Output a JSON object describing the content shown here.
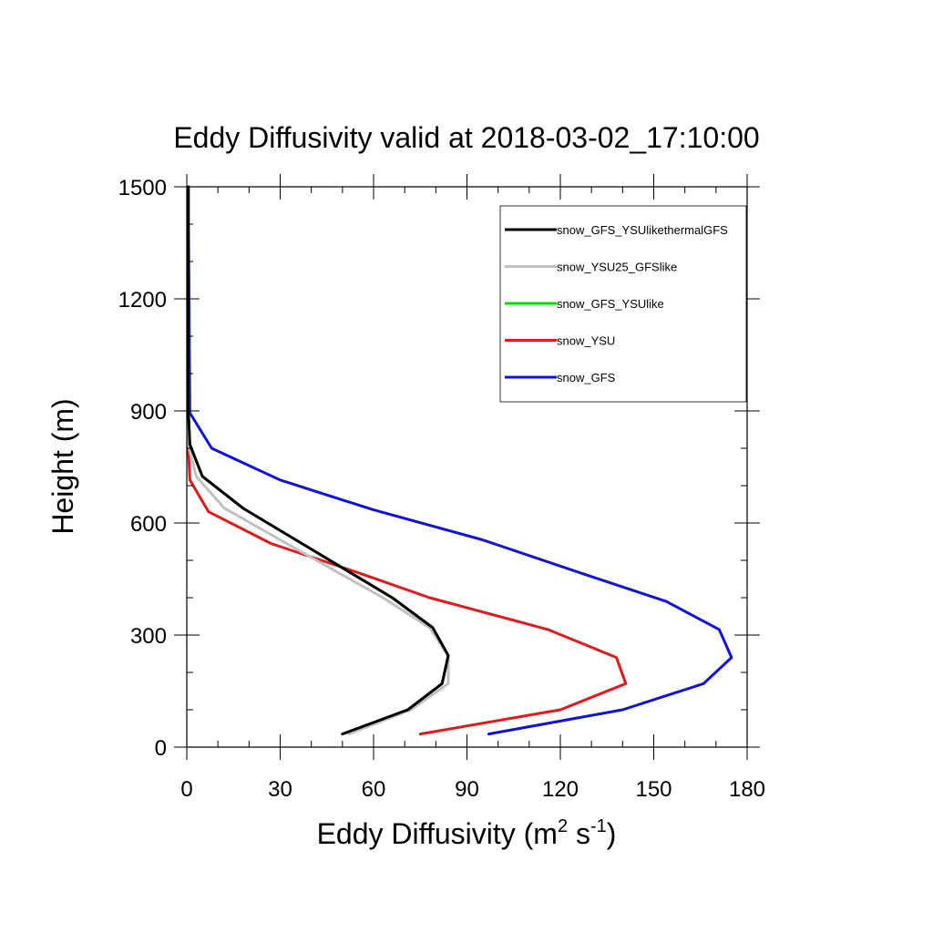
{
  "chart_data": {
    "type": "line",
    "title": "Eddy Diffusivity valid at 2018-03-02_17:10:00",
    "xlabel": {
      "base": "Eddy Diffusivity (m",
      "sup1": "2",
      "mid": " s",
      "sup2": "-1",
      "end": ")"
    },
    "ylabel": "Height (m)",
    "xlim": [
      0,
      180
    ],
    "ylim": [
      0,
      1500
    ],
    "xticks": [
      0,
      30,
      60,
      90,
      120,
      150,
      180
    ],
    "yticks": [
      0,
      300,
      600,
      900,
      1200,
      1500
    ],
    "grid": false,
    "legend_position": "top-right",
    "series": [
      {
        "name": "snow_GFS_YSUlikethermalGFS",
        "color": "#000000",
        "x": [
          50,
          71,
          82,
          84,
          79,
          66,
          51,
          35,
          18,
          5,
          1,
          0.5,
          0.5
        ],
        "y": [
          35,
          100,
          170,
          245,
          320,
          400,
          475,
          555,
          640,
          725,
          810,
          900,
          1500
        ]
      },
      {
        "name": "snow_YSU25_GFSlike",
        "color": "#c0c0c0",
        "x": [
          52,
          72,
          84,
          84,
          78,
          63,
          47,
          30,
          12,
          3,
          0.5,
          0.5,
          0.5
        ],
        "y": [
          35,
          100,
          170,
          245,
          320,
          400,
          475,
          555,
          640,
          725,
          810,
          900,
          1500
        ]
      },
      {
        "name": "snow_GFS_YSUlike",
        "color": "#00dd00",
        "x": [
          50,
          71,
          82,
          84,
          79,
          66,
          51,
          35,
          18,
          5,
          1,
          0.5,
          0.5
        ],
        "y": [
          35,
          100,
          170,
          245,
          320,
          400,
          475,
          555,
          640,
          725,
          810,
          900,
          1500
        ]
      },
      {
        "name": "snow_YSU",
        "color": "#e41a1a",
        "x": [
          75,
          120,
          141,
          138,
          116,
          78,
          54,
          27,
          7,
          1,
          0.5,
          0.5,
          0.5
        ],
        "y": [
          35,
          100,
          170,
          240,
          315,
          400,
          470,
          545,
          630,
          715,
          800,
          900,
          1500
        ]
      },
      {
        "name": "snow_GFS",
        "color": "#1010e0",
        "x": [
          97,
          140,
          166,
          175,
          171,
          154,
          127,
          95,
          60,
          30,
          8,
          1,
          0.5
        ],
        "y": [
          35,
          100,
          170,
          240,
          315,
          390,
          465,
          555,
          635,
          715,
          800,
          895,
          1500
        ]
      }
    ]
  }
}
